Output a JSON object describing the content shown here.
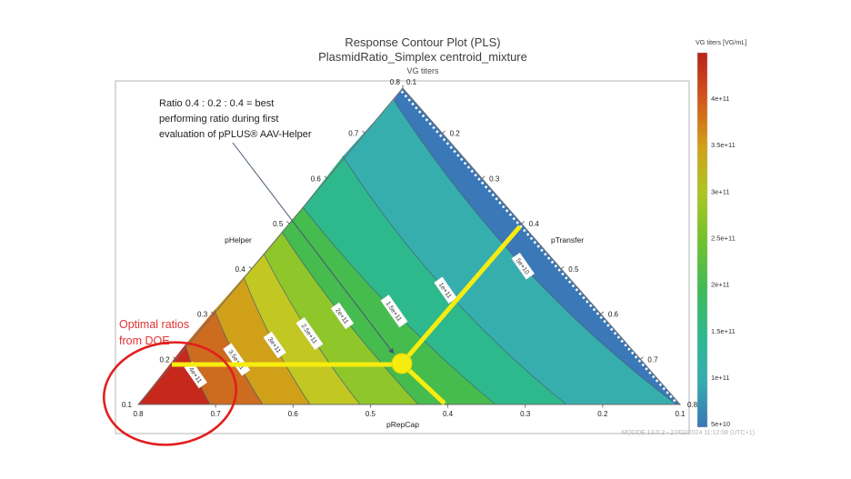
{
  "header": {
    "title": "Response Contour Plot (PLS)",
    "subtitle": "PlasmidRatio_Simplex centroid_mixture",
    "response_label": "VG titers"
  },
  "annotation": {
    "lines": [
      "Ratio 0.4 : 0.2 : 0.4  = best",
      "performing ratio during first",
      "evaluation of pPLUS® AAV-Helper"
    ]
  },
  "optimal_callout": {
    "lines": [
      "Optimal ratios",
      "from DOE"
    ],
    "color": "#e03333",
    "ellipse_color": "#e21f1f"
  },
  "footer": {
    "text": "MODDE 13.0.2 - 27/02/2024 11:12:08 (UTC+1)"
  },
  "chart_data": {
    "type": "ternary-contour",
    "title": "Response Contour Plot (PLS)",
    "subtitle": "PlasmidRatio_Simplex centroid_mixture",
    "response": "VG titers",
    "axes": {
      "left": {
        "label": "pHelper",
        "min": 0.1,
        "max": 0.8,
        "ticks": [
          "0.1",
          "0.2",
          "0.3",
          "0.4",
          "0.5",
          "0.6",
          "0.7",
          "0.8"
        ]
      },
      "right": {
        "label": "pTransfer",
        "min": 0.1,
        "max": 0.8,
        "ticks": [
          "0.1",
          "0.2",
          "0.3",
          "0.4",
          "0.5",
          "0.6",
          "0.7",
          "0.8"
        ]
      },
      "bottom": {
        "label": "pRepCap",
        "min": 0.1,
        "max": 0.8,
        "ticks": [
          "0.8",
          "0.7",
          "0.6",
          "0.5",
          "0.4",
          "0.3",
          "0.2",
          "0.1"
        ]
      }
    },
    "contours": [
      {
        "label": "4e+11",
        "value": 400000000000.0,
        "bottom_crossing_pRepCap": 0.71,
        "left_crossing_pHelper": 0.23
      },
      {
        "label": "3.5e+11",
        "value": 350000000000.0,
        "bottom_crossing_pRepCap": 0.64,
        "left_crossing_pHelper": 0.31
      },
      {
        "label": "3e+11",
        "value": 300000000000.0,
        "bottom_crossing_pRepCap": 0.58,
        "left_crossing_pHelper": 0.38
      },
      {
        "label": "2.5e+11",
        "value": 250000000000.0,
        "bottom_crossing_pRepCap": 0.51,
        "left_crossing_pHelper": 0.43
      },
      {
        "label": "2e+11",
        "value": 200000000000.0,
        "bottom_crossing_pRepCap": 0.44,
        "left_crossing_pHelper": 0.48
      },
      {
        "label": "1.5e+11",
        "value": 150000000000.0,
        "bottom_crossing_pRepCap": 0.34,
        "left_crossing_pHelper": 0.54
      },
      {
        "label": "1e+11",
        "value": 100000000000.0,
        "bottom_crossing_pRepCap": 0.25,
        "left_crossing_pHelper": 0.65
      },
      {
        "label": "5e+10",
        "value": 50000000000.0,
        "bottom_crossing_pRepCap": 0.11,
        "left_crossing_pHelper": 0.77
      }
    ],
    "bands": [
      {
        "range": "> 4e+11",
        "color": "#c6291c"
      },
      {
        "range": "3.5e+11 - 4e+11",
        "color": "#cd6b1e"
      },
      {
        "range": "3e+11 - 3.5e+11",
        "color": "#d0a019"
      },
      {
        "range": "2.5e+11 - 3e+11",
        "color": "#c3c721"
      },
      {
        "range": "2e+11 - 2.5e+11",
        "color": "#8fc629"
      },
      {
        "range": "1.5e+11 - 2e+11",
        "color": "#46bb4e"
      },
      {
        "range": "1e+11 - 1.5e+11",
        "color": "#2eb98c"
      },
      {
        "range": "5e+10 - 1e+11",
        "color": "#37aeae"
      },
      {
        "range": "< 5e+10",
        "color": "#3a78b7"
      }
    ],
    "reference_point": {
      "pHelper": 0.2,
      "pTransfer": 0.4,
      "pRepCap": 0.4,
      "marker_color": "#f7ec0f",
      "description": "yellow circle with guide lines to each axis"
    },
    "colorbar": {
      "title": "VG titers [VG/mL]",
      "tick_labels": [
        "4e+11",
        "3.5e+11",
        "3e+11",
        "2.5e+11",
        "2e+11",
        "1.5e+11",
        "1e+11",
        "5e+10"
      ],
      "top_value": 450000000000.0,
      "bottom_value": 50000000000.0,
      "gradient": [
        "#b7231a",
        "#d2571c",
        "#d2a018",
        "#abc622",
        "#72c22c",
        "#42bb55",
        "#2eb98d",
        "#35adb0",
        "#3a76b5"
      ]
    }
  }
}
